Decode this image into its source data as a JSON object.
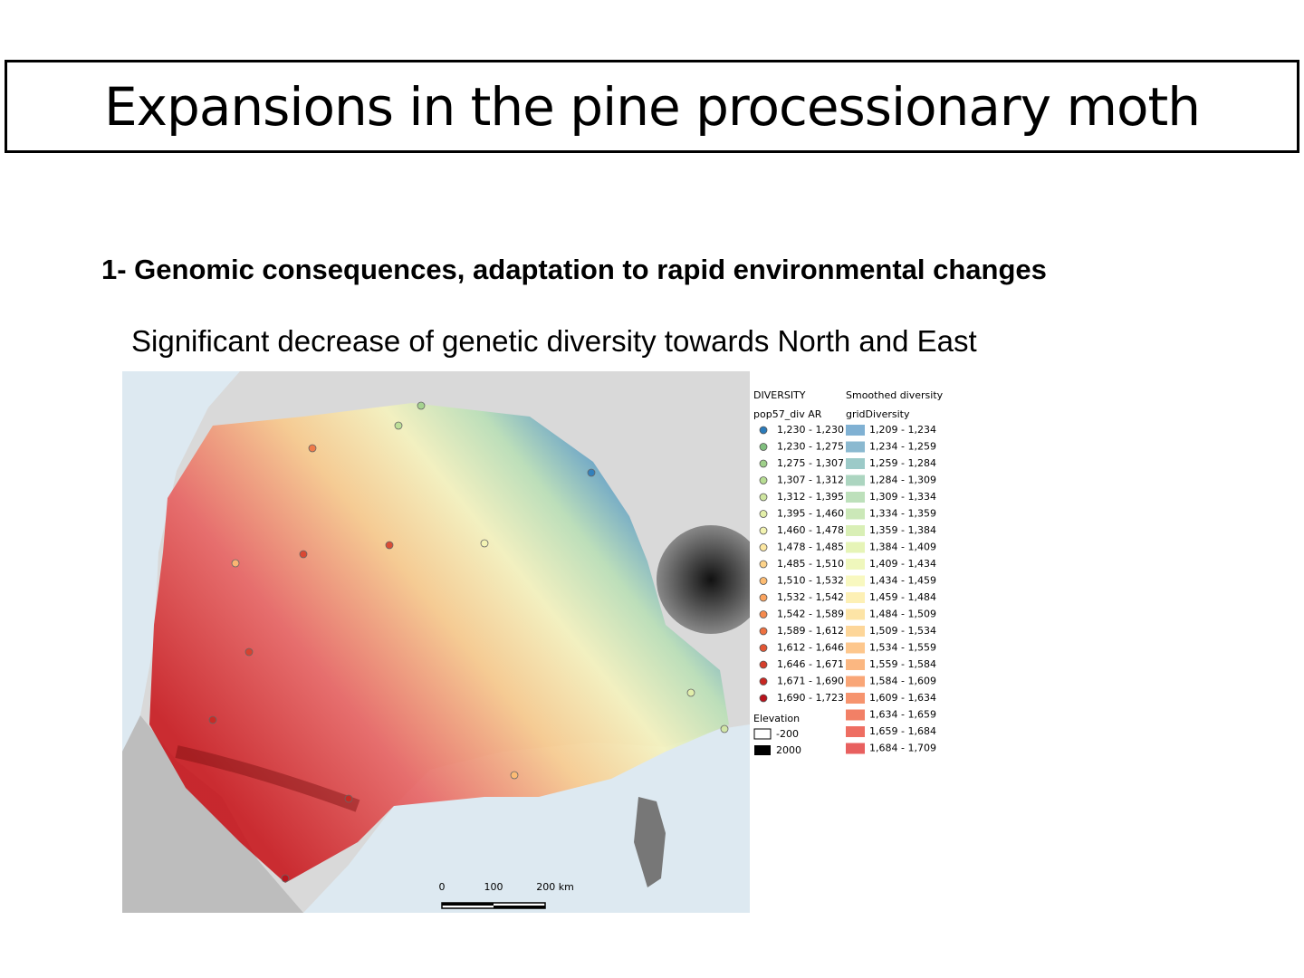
{
  "title": "Expansions in the pine processionary moth",
  "heading": "1- Genomic consequences, adaptation to rapid environmental changes",
  "text": "Significant decrease of genetic diversity towards North and East",
  "map": {
    "legend": {
      "points": {
        "title": "DIVERSITY",
        "subtitle": "pop57_div AR",
        "classes": [
          {
            "label": "1,230 - 1,230",
            "color": "#2b7bba"
          },
          {
            "label": "1,230 - 1,275",
            "color": "#80bf7e"
          },
          {
            "label": "1,275 - 1,307",
            "color": "#9fd08a"
          },
          {
            "label": "1,307 - 1,312",
            "color": "#b7dd93"
          },
          {
            "label": "1,312 - 1,395",
            "color": "#cfe6a0"
          },
          {
            "label": "1,395 - 1,460",
            "color": "#e3efa9"
          },
          {
            "label": "1,460 - 1,478",
            "color": "#f3f4b2"
          },
          {
            "label": "1,478 - 1,485",
            "color": "#fde8a2"
          },
          {
            "label": "1,485 - 1,510",
            "color": "#fdd38a"
          },
          {
            "label": "1,510 - 1,532",
            "color": "#fdbc72"
          },
          {
            "label": "1,532 - 1,542",
            "color": "#fba45f"
          },
          {
            "label": "1,542 - 1,589",
            "color": "#f68a4d"
          },
          {
            "label": "1,589 - 1,612",
            "color": "#ee7140"
          },
          {
            "label": "1,612 - 1,646",
            "color": "#e35634"
          },
          {
            "label": "1,646 - 1,671",
            "color": "#d63f2b"
          },
          {
            "label": "1,671 - 1,690",
            "color": "#c82822"
          },
          {
            "label": "1,690 - 1,723",
            "color": "#b8121c"
          }
        ]
      },
      "grid": {
        "title": "Smoothed diversity",
        "subtitle": "gridDiversity",
        "classes": [
          {
            "label": "1,209 - 1,234",
            "color": "#80b1d3"
          },
          {
            "label": "1,234 - 1,259",
            "color": "#8bb9d0"
          },
          {
            "label": "1,259 - 1,284",
            "color": "#9ccac8"
          },
          {
            "label": "1,284 - 1,309",
            "color": "#acd5c0"
          },
          {
            "label": "1,309 - 1,334",
            "color": "#bde0bb"
          },
          {
            "label": "1,334 - 1,359",
            "color": "#cbe8b8"
          },
          {
            "label": "1,359 - 1,384",
            "color": "#d9efb6"
          },
          {
            "label": "1,384 - 1,409",
            "color": "#e6f4b7"
          },
          {
            "label": "1,409 - 1,434",
            "color": "#eff7bc"
          },
          {
            "label": "1,434 - 1,459",
            "color": "#f8f8c0"
          },
          {
            "label": "1,459 - 1,484",
            "color": "#fdf0b5"
          },
          {
            "label": "1,484 - 1,509",
            "color": "#fde4a6"
          },
          {
            "label": "1,509 - 1,534",
            "color": "#fdd699"
          },
          {
            "label": "1,534 - 1,559",
            "color": "#fdc78d"
          },
          {
            "label": "1,559 - 1,584",
            "color": "#fbb781"
          },
          {
            "label": "1,584 - 1,609",
            "color": "#f9a677"
          },
          {
            "label": "1,609 - 1,634",
            "color": "#f6946e"
          },
          {
            "label": "1,634 - 1,659",
            "color": "#f28066"
          },
          {
            "label": "1,659 - 1,684",
            "color": "#ee6e62"
          },
          {
            "label": "1,684 - 1,709",
            "color": "#e8605f"
          }
        ]
      },
      "elevation": {
        "title": "Elevation",
        "min": "-200",
        "max": "2000"
      }
    },
    "scale": [
      "0",
      "100",
      "200 km"
    ]
  }
}
